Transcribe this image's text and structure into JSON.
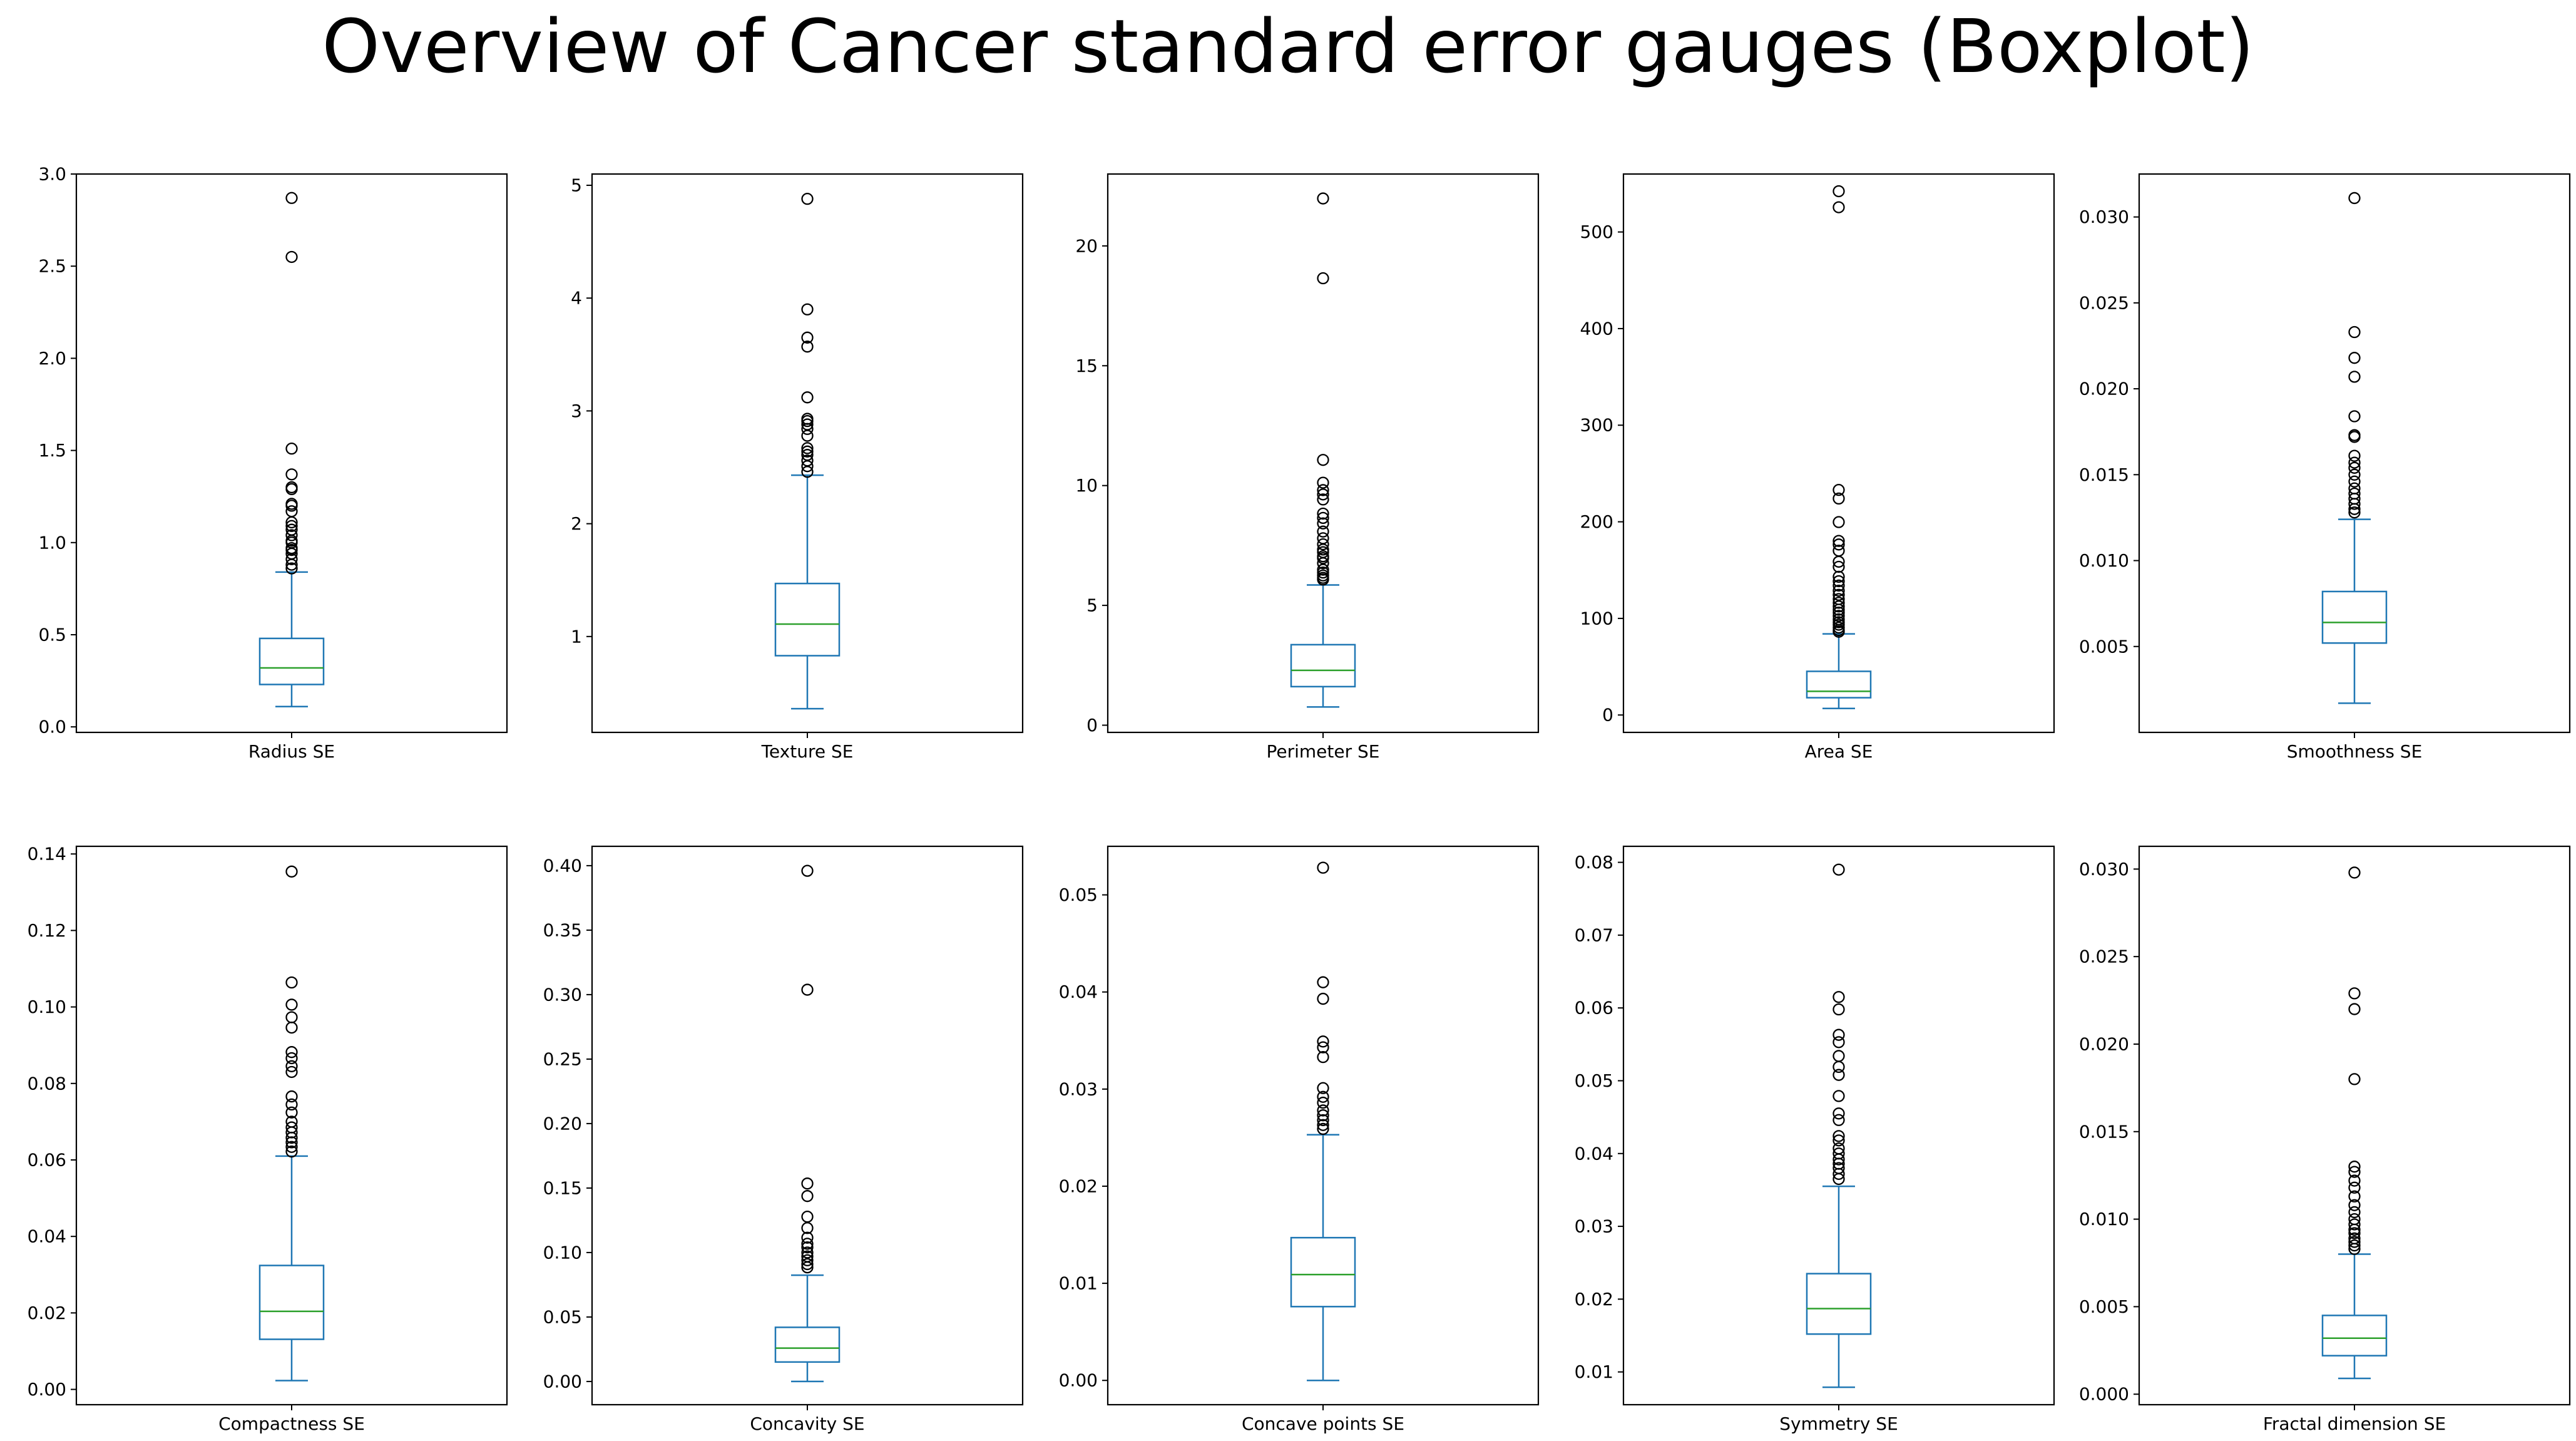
{
  "title": "Overview of Cancer standard error gauges (Boxplot)",
  "colors": {
    "box": "#1f77b4",
    "median": "#2ca02c",
    "outlier": "#000000",
    "axes": "#000000",
    "background": "#ffffff"
  },
  "chart_data": [
    {
      "type": "boxplot",
      "xlabel": "Radius SE",
      "ylim": [
        -0.03,
        3.0
      ],
      "yticks": [
        0.0,
        0.5,
        1.0,
        1.5,
        2.0,
        2.5,
        3.0
      ],
      "ytick_labels": [
        "0.0",
        "0.5",
        "1.0",
        "1.5",
        "2.0",
        "2.5",
        "3.0"
      ],
      "whisker_low": 0.11,
      "q1": 0.23,
      "median": 0.32,
      "q3": 0.48,
      "whisker_high": 0.84,
      "outliers": [
        2.87,
        2.55,
        1.51,
        1.37,
        1.3,
        1.29,
        1.21,
        1.2,
        1.17,
        1.11,
        1.09,
        1.07,
        1.04,
        1.01,
        1.0,
        0.97,
        0.96,
        0.94,
        0.91,
        0.88,
        0.86
      ]
    },
    {
      "type": "boxplot",
      "xlabel": "Texture SE",
      "ylim": [
        0.15,
        5.1
      ],
      "yticks": [
        1,
        2,
        3,
        4,
        5
      ],
      "ytick_labels": [
        "1",
        "2",
        "3",
        "4",
        "5"
      ],
      "whisker_low": 0.36,
      "q1": 0.83,
      "median": 1.11,
      "q3": 1.47,
      "whisker_high": 2.43,
      "outliers": [
        4.88,
        3.9,
        3.65,
        3.57,
        3.12,
        2.93,
        2.91,
        2.88,
        2.84,
        2.78,
        2.67,
        2.64,
        2.61,
        2.56,
        2.51,
        2.46
      ]
    },
    {
      "type": "boxplot",
      "xlabel": "Perimeter SE",
      "ylim": [
        -0.3,
        23.0
      ],
      "yticks": [
        0,
        5,
        10,
        15,
        20
      ],
      "ytick_labels": [
        "0",
        "5",
        "10",
        "15",
        "20"
      ],
      "whisker_low": 0.76,
      "q1": 1.61,
      "median": 2.29,
      "q3": 3.36,
      "whisker_high": 5.85,
      "outliers": [
        21.98,
        18.65,
        11.07,
        10.12,
        9.81,
        9.63,
        9.42,
        8.83,
        8.65,
        8.42,
        8.08,
        7.8,
        7.55,
        7.33,
        7.22,
        7.05,
        6.97,
        6.76,
        6.49,
        6.37,
        6.25,
        6.15,
        6.08
      ]
    },
    {
      "type": "boxplot",
      "xlabel": "Area SE",
      "ylim": [
        -18,
        560
      ],
      "yticks": [
        0,
        100,
        200,
        300,
        400,
        500
      ],
      "ytick_labels": [
        "0",
        "100",
        "200",
        "300",
        "400",
        "500"
      ],
      "whisker_low": 6.8,
      "q1": 17.9,
      "median": 24.5,
      "q3": 45.2,
      "whisker_high": 84.0,
      "outliers": [
        542.2,
        525.6,
        233.0,
        224.1,
        199.7,
        180.2,
        176.5,
        170.1,
        158.7,
        153.4,
        143.1,
        138.5,
        134.0,
        128.7,
        124.4,
        120.0,
        116.2,
        112.4,
        109.0,
        106.0,
        102.6,
        99.0,
        96.0,
        93.5,
        90.5,
        87.9,
        86.2
      ]
    },
    {
      "type": "boxplot",
      "xlabel": "Smoothness SE",
      "ylim": [
        0.0,
        0.0325
      ],
      "yticks": [
        0.005,
        0.01,
        0.015,
        0.02,
        0.025,
        0.03
      ],
      "ytick_labels": [
        "0.005",
        "0.010",
        "0.015",
        "0.020",
        "0.025",
        "0.030"
      ],
      "whisker_low": 0.0017,
      "q1": 0.0052,
      "median": 0.0064,
      "q3": 0.0082,
      "whisker_high": 0.0124,
      "outliers": [
        0.0311,
        0.0233,
        0.0218,
        0.0207,
        0.0184,
        0.0173,
        0.0172,
        0.0161,
        0.0157,
        0.0154,
        0.015,
        0.0146,
        0.0142,
        0.0139,
        0.0136,
        0.0133,
        0.013,
        0.0128
      ]
    },
    {
      "type": "boxplot",
      "xlabel": "Compactness SE",
      "ylim": [
        -0.004,
        0.142
      ],
      "yticks": [
        0.0,
        0.02,
        0.04,
        0.06,
        0.08,
        0.1,
        0.12,
        0.14
      ],
      "ytick_labels": [
        "0.00",
        "0.02",
        "0.04",
        "0.06",
        "0.08",
        "0.10",
        "0.12",
        "0.14"
      ],
      "whisker_low": 0.0023,
      "q1": 0.0131,
      "median": 0.0204,
      "q3": 0.0324,
      "whisker_high": 0.061,
      "outliers": [
        0.1354,
        0.1064,
        0.1006,
        0.0973,
        0.0946,
        0.0882,
        0.0866,
        0.0845,
        0.083,
        0.0766,
        0.0745,
        0.0724,
        0.07,
        0.0685,
        0.0672,
        0.0658,
        0.0646,
        0.0634,
        0.0622
      ]
    },
    {
      "type": "boxplot",
      "xlabel": "Concavity SE",
      "ylim": [
        -0.018,
        0.415
      ],
      "yticks": [
        0.0,
        0.05,
        0.1,
        0.15,
        0.2,
        0.25,
        0.3,
        0.35,
        0.4
      ],
      "ytick_labels": [
        "0.00",
        "0.05",
        "0.10",
        "0.15",
        "0.20",
        "0.25",
        "0.30",
        "0.35",
        "0.40"
      ],
      "whisker_low": 0.0,
      "q1": 0.0151,
      "median": 0.0259,
      "q3": 0.042,
      "whisker_high": 0.0824,
      "outliers": [
        0.396,
        0.3038,
        0.1535,
        0.1438,
        0.1278,
        0.119,
        0.1115,
        0.1068,
        0.104,
        0.1,
        0.097,
        0.094,
        0.091,
        0.0885
      ]
    },
    {
      "type": "boxplot",
      "xlabel": "Concave points SE",
      "ylim": [
        -0.0025,
        0.055
      ],
      "yticks": [
        0.0,
        0.01,
        0.02,
        0.03,
        0.04,
        0.05
      ],
      "ytick_labels": [
        "0.00",
        "0.01",
        "0.02",
        "0.03",
        "0.04",
        "0.05"
      ],
      "whisker_low": 0.0,
      "q1": 0.0076,
      "median": 0.0109,
      "q3": 0.0147,
      "whisker_high": 0.0253,
      "outliers": [
        0.0528,
        0.041,
        0.0393,
        0.0349,
        0.0343,
        0.0333,
        0.0301,
        0.0292,
        0.0286,
        0.0278,
        0.0273,
        0.0268,
        0.0263,
        0.0259
      ]
    },
    {
      "type": "boxplot",
      "xlabel": "Symmetry SE",
      "ylim": [
        0.0055,
        0.0822
      ],
      "yticks": [
        0.01,
        0.02,
        0.03,
        0.04,
        0.05,
        0.06,
        0.07,
        0.08
      ],
      "ytick_labels": [
        "0.01",
        "0.02",
        "0.03",
        "0.04",
        "0.05",
        "0.06",
        "0.07",
        "0.08"
      ],
      "whisker_low": 0.0079,
      "q1": 0.0152,
      "median": 0.0187,
      "q3": 0.0235,
      "whisker_high": 0.0355,
      "outliers": [
        0.079,
        0.0615,
        0.0598,
        0.0563,
        0.0553,
        0.0534,
        0.0519,
        0.0508,
        0.0479,
        0.0455,
        0.0446,
        0.0424,
        0.0418,
        0.0407,
        0.04,
        0.0392,
        0.0386,
        0.038,
        0.0372,
        0.0365
      ]
    },
    {
      "type": "boxplot",
      "xlabel": "Fractal dimension SE",
      "ylim": [
        -0.0006,
        0.0313
      ],
      "yticks": [
        0.0,
        0.005,
        0.01,
        0.015,
        0.02,
        0.025,
        0.03
      ],
      "ytick_labels": [
        "0.000",
        "0.005",
        "0.010",
        "0.015",
        "0.020",
        "0.025",
        "0.030"
      ],
      "whisker_low": 0.0009,
      "q1": 0.0022,
      "median": 0.0032,
      "q3": 0.0045,
      "whisker_high": 0.008,
      "outliers": [
        0.0298,
        0.0229,
        0.022,
        0.018,
        0.013,
        0.0127,
        0.0122,
        0.0118,
        0.0113,
        0.0108,
        0.0104,
        0.01,
        0.0097,
        0.0094,
        0.0092,
        0.0089,
        0.0087,
        0.0085,
        0.0083
      ]
    }
  ]
}
